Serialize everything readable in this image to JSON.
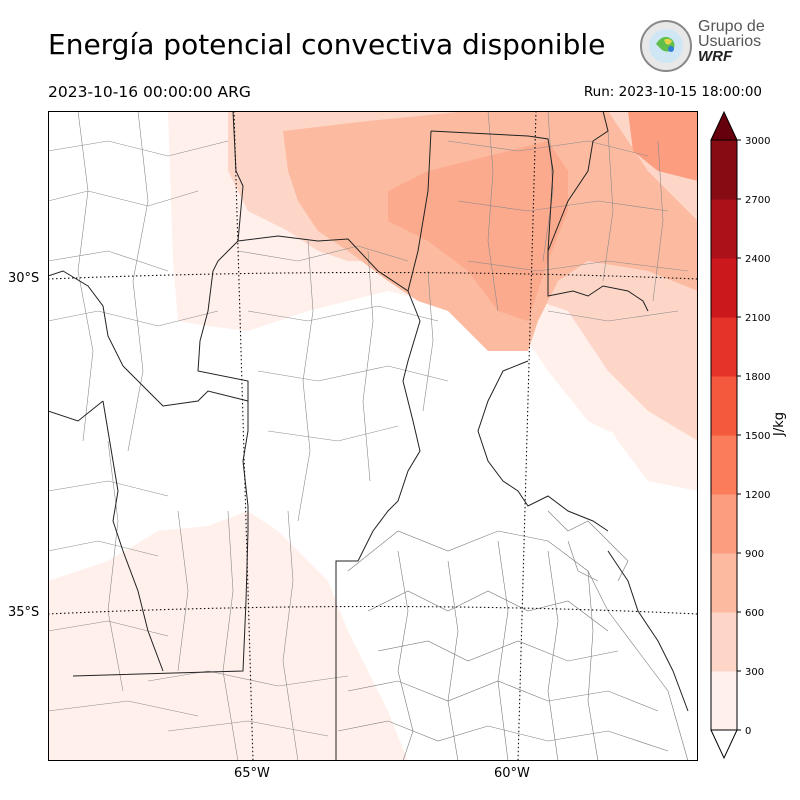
{
  "title": "Energía potencial convectiva disponible",
  "valid_time": "2023-10-16 00:00:00 ARG",
  "run_time": "Run: 2023-10-15 18:00:00",
  "logo": {
    "line1": "Grupo de",
    "line2": "Usuarios",
    "line3": "WRF"
  },
  "map": {
    "lat_labels": [
      "30°S",
      "35°S"
    ],
    "lon_labels": [
      "65°W",
      "60°W"
    ]
  },
  "colorbar": {
    "unit": "J/kg",
    "ticks": [
      "0",
      "300",
      "600",
      "900",
      "1200",
      "1500",
      "1800",
      "2100",
      "2400",
      "2700",
      "3000"
    ],
    "colors": [
      "#fff0eb",
      "#fdd6c8",
      "#fcbba0",
      "#fc9d80",
      "#fb7c5b",
      "#f4593e",
      "#e63329",
      "#cb181d",
      "#ac1117",
      "#860b12",
      "#67000d"
    ]
  }
}
